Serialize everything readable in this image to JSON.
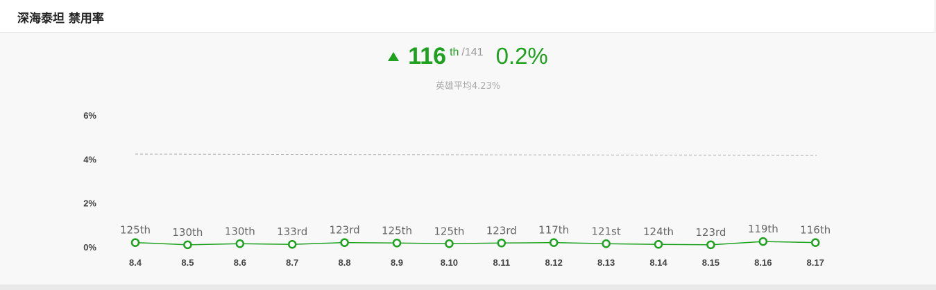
{
  "header": {
    "title": "深海泰坦 禁用率"
  },
  "summary": {
    "rank": "116",
    "rank_suffix": "th",
    "rank_total": "/141",
    "rate": "0.2%",
    "average_text": "英雄平均4.23%"
  },
  "colors": {
    "accent": "#1ea11e",
    "average_line": "#aaaaaa",
    "muted_text": "#999999"
  },
  "chart_data": {
    "type": "line",
    "categories": [
      "8.4",
      "8.5",
      "8.6",
      "8.7",
      "8.8",
      "8.9",
      "8.10",
      "8.11",
      "8.12",
      "8.13",
      "8.14",
      "8.15",
      "8.16",
      "8.17"
    ],
    "series": [
      {
        "values": [
          0.2,
          0.1,
          0.15,
          0.12,
          0.2,
          0.18,
          0.15,
          0.18,
          0.2,
          0.15,
          0.12,
          0.1,
          0.25,
          0.2
        ],
        "point_labels": [
          "125th",
          "130th",
          "130th",
          "133rd",
          "123rd",
          "125th",
          "125th",
          "123rd",
          "117th",
          "121st",
          "124th",
          "123rd",
          "119th",
          "116th"
        ]
      }
    ],
    "reference_line": {
      "value": 4.23,
      "style": "dashed"
    },
    "y_ticks": [
      "0%",
      "2%",
      "4%",
      "6%"
    ],
    "ylim": [
      0,
      6
    ],
    "grid": false
  }
}
